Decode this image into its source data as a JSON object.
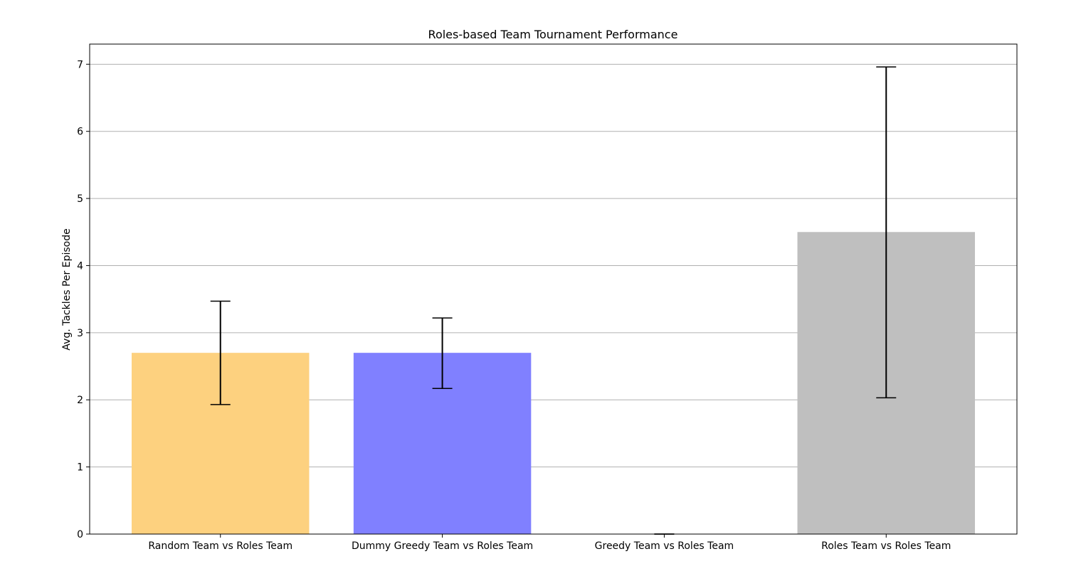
{
  "chart_data": {
    "type": "bar",
    "title": "Roles-based Team Tournament Performance",
    "xlabel": "",
    "ylabel": "Avg. Tackles Per Episode",
    "categories": [
      "Random Team vs Roles Team",
      "Dummy Greedy Team vs Roles Team",
      "Greedy Team vs Roles Team",
      "Roles Team vs Roles Team"
    ],
    "values": [
      2.7,
      2.7,
      0.0,
      4.5
    ],
    "error_low": [
      1.93,
      2.17,
      0.0,
      2.03
    ],
    "error_high": [
      3.47,
      3.22,
      0.0,
      6.96
    ],
    "colors": [
      "#fdd17f",
      "#8080ff",
      "#ffffff",
      "#bfbfbf"
    ],
    "ylim": [
      0,
      7.3
    ],
    "yticks": [
      0,
      1,
      2,
      3,
      4,
      5,
      6,
      7
    ],
    "grid": "y",
    "legend": "none"
  }
}
